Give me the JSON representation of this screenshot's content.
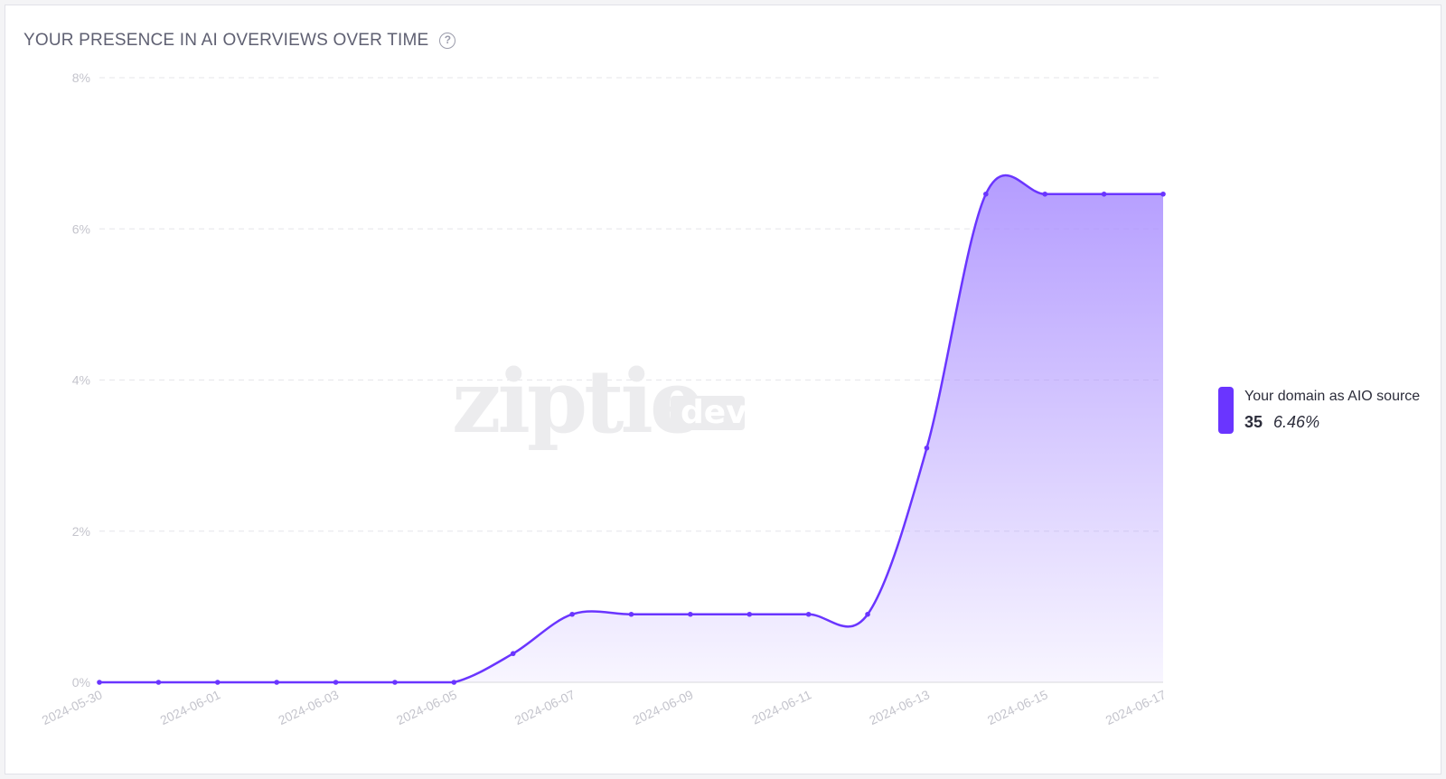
{
  "header": {
    "title": "YOUR PRESENCE IN AI OVERVIEWS OVER TIME",
    "help_icon": "question-circle-icon"
  },
  "watermark": {
    "brand": "ziptie",
    "badge": "dev"
  },
  "colors": {
    "series": "#6a35ff",
    "area_top": "#b9a6ff",
    "grid": "#e6e6ea",
    "tick": "#c4c4cc"
  },
  "legend": {
    "name": "Your domain as AIO source",
    "count": "35",
    "percent": "6.46%"
  },
  "chart_data": {
    "type": "area",
    "title": "YOUR PRESENCE IN AI OVERVIEWS OVER TIME",
    "xlabel": "",
    "ylabel": "",
    "ylim": [
      0,
      8
    ],
    "yticks": [
      0,
      2,
      4,
      6,
      8
    ],
    "ytick_labels": [
      "0%",
      "2%",
      "4%",
      "6%",
      "8%"
    ],
    "xtick_labels": [
      "2024-05-30",
      "2024-06-01",
      "2024-06-03",
      "2024-06-05",
      "2024-06-07",
      "2024-06-09",
      "2024-06-11",
      "2024-06-13",
      "2024-06-15",
      "2024-06-17"
    ],
    "grid": true,
    "legend_position": "right",
    "series": [
      {
        "name": "Your domain as AIO source",
        "x": [
          "2024-05-30",
          "2024-05-31",
          "2024-06-01",
          "2024-06-02",
          "2024-06-03",
          "2024-06-04",
          "2024-06-05",
          "2024-06-06",
          "2024-06-07",
          "2024-06-08",
          "2024-06-09",
          "2024-06-10",
          "2024-06-11",
          "2024-06-12",
          "2024-06-13",
          "2024-06-14",
          "2024-06-15",
          "2024-06-16",
          "2024-06-17"
        ],
        "values": [
          0,
          0,
          0,
          0,
          0,
          0,
          0,
          0.38,
          0.9,
          0.9,
          0.9,
          0.9,
          0.9,
          0.9,
          3.1,
          6.46,
          6.46,
          6.46,
          6.46
        ]
      }
    ]
  }
}
